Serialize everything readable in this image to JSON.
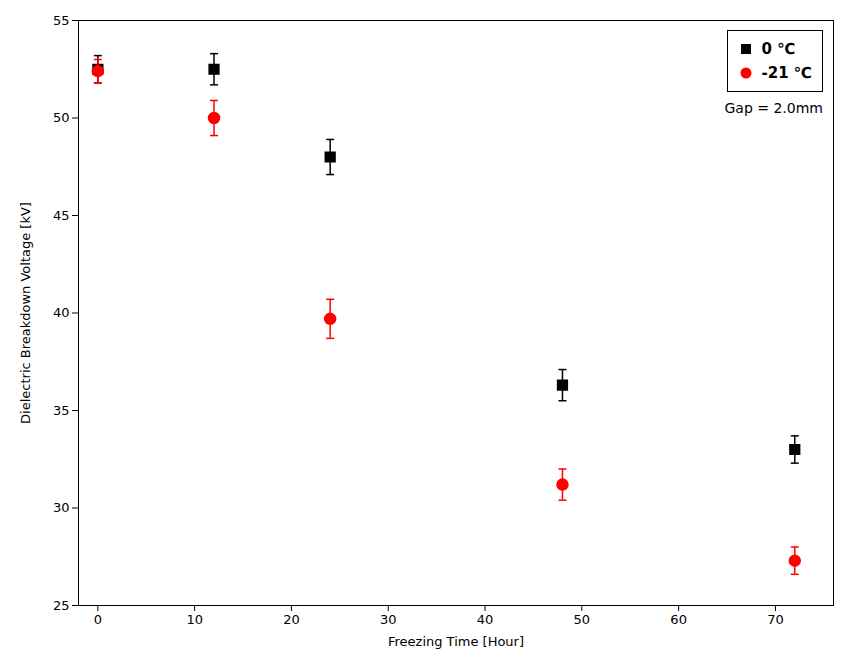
{
  "chart_data": {
    "type": "scatter",
    "xlabel": "Freezing Time [Hour]",
    "ylabel": "Dielectric Breakdown Voltage [kV]",
    "x": [
      0,
      12,
      24,
      48,
      72
    ],
    "series": [
      {
        "name": "0 ℃",
        "color": "#000000",
        "marker": "square",
        "values": [
          52.5,
          52.5,
          48.0,
          36.3,
          33.0
        ],
        "yerr": [
          0.7,
          0.8,
          0.9,
          0.8,
          0.7
        ]
      },
      {
        "name": "-21 ℃",
        "color": "#ff0000",
        "marker": "circle",
        "values": [
          52.4,
          50.0,
          39.7,
          31.2,
          27.3
        ],
        "yerr": [
          0.6,
          0.9,
          1.0,
          0.8,
          0.7
        ]
      }
    ],
    "xlim": [
      -2,
      76
    ],
    "ylim": [
      25,
      55
    ],
    "xticks": [
      0,
      10,
      20,
      30,
      40,
      50,
      60,
      70
    ],
    "yticks": [
      25,
      30,
      35,
      40,
      45,
      50,
      55
    ],
    "legend": "upper right",
    "annotation": "Gap = 2.0mm",
    "grid": false
  }
}
